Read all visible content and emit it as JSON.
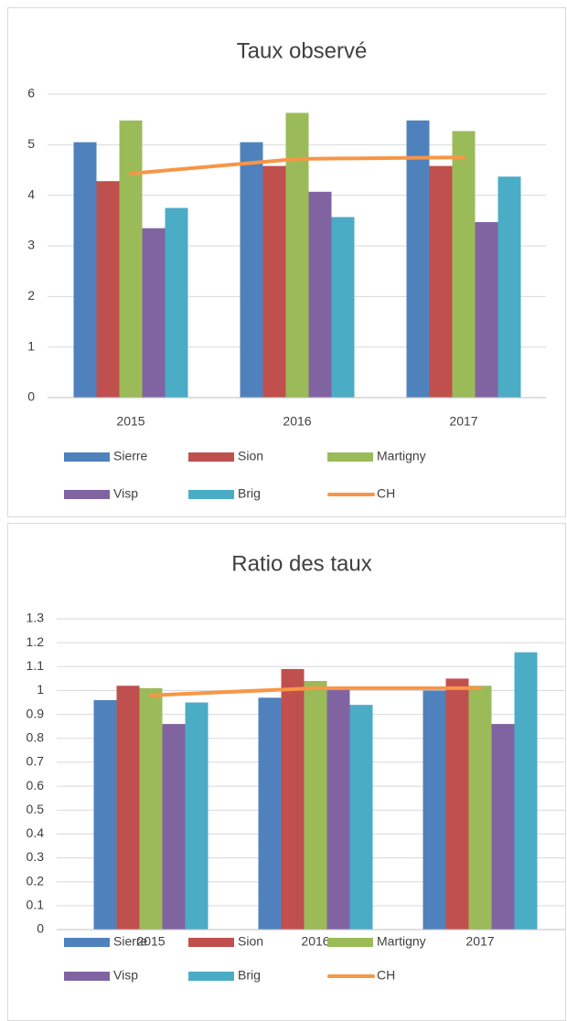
{
  "chart_data": [
    {
      "type": "bar",
      "title": "Taux observé",
      "categories": [
        "2015",
        "2016",
        "2017"
      ],
      "series": [
        {
          "name": "Sierre",
          "color": "#4f81bd",
          "values": [
            5.05,
            5.05,
            5.48
          ]
        },
        {
          "name": "Sion",
          "color": "#c0504d",
          "values": [
            4.28,
            4.58,
            4.58
          ]
        },
        {
          "name": "Martigny",
          "color": "#9bbb59",
          "values": [
            5.48,
            5.63,
            5.27
          ]
        },
        {
          "name": "Visp",
          "color": "#8064a2",
          "values": [
            3.35,
            4.07,
            3.47
          ]
        },
        {
          "name": "Brig",
          "color": "#4bacc6",
          "values": [
            3.75,
            3.57,
            4.37
          ]
        },
        {
          "name": "CH",
          "color": "#f79646",
          "type": "line",
          "values": [
            4.43,
            4.72,
            4.75
          ]
        }
      ],
      "ylim": [
        0,
        6
      ],
      "yticks": [
        0,
        1,
        2,
        3,
        4,
        5,
        6
      ],
      "grid": true,
      "legend": "bottom"
    },
    {
      "type": "bar",
      "title": "Ratio des taux",
      "categories": [
        "2015",
        "2016",
        "2017"
      ],
      "series": [
        {
          "name": "Sierre",
          "color": "#4f81bd",
          "values": [
            0.96,
            0.97,
            1.0
          ]
        },
        {
          "name": "Sion",
          "color": "#c0504d",
          "values": [
            1.02,
            1.09,
            1.05
          ]
        },
        {
          "name": "Martigny",
          "color": "#9bbb59",
          "values": [
            1.01,
            1.04,
            1.02
          ]
        },
        {
          "name": "Visp",
          "color": "#8064a2",
          "values": [
            0.86,
            1.01,
            0.86
          ]
        },
        {
          "name": "Brig",
          "color": "#4bacc6",
          "values": [
            0.95,
            0.94,
            1.16
          ]
        },
        {
          "name": "CH",
          "color": "#f79646",
          "type": "line",
          "values": [
            0.98,
            1.01,
            1.01
          ]
        }
      ],
      "ylim": [
        0,
        1.3
      ],
      "yticks": [
        0,
        0.1,
        0.2,
        0.3,
        0.4,
        0.5,
        0.6,
        0.7,
        0.8,
        0.9,
        1,
        1.1,
        1.2,
        1.3
      ],
      "grid": true,
      "legend": "bottom"
    }
  ]
}
